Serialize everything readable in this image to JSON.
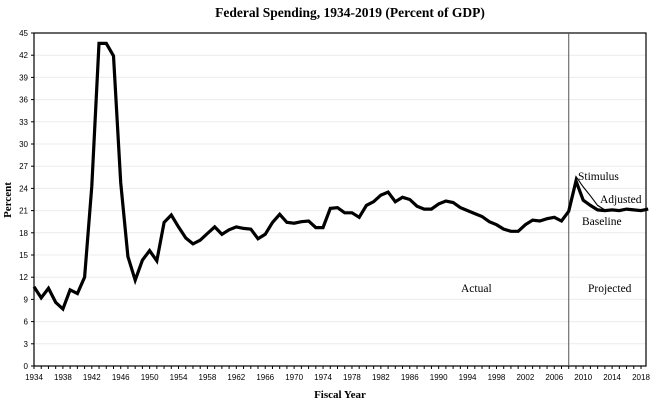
{
  "chart_data": {
    "type": "line",
    "title": "Federal Spending, 1934-2019 (Percent of GDP)",
    "xlabel": "Fiscal Year",
    "ylabel": "Percent",
    "xlim": [
      1934,
      2019
    ],
    "ylim": [
      0,
      45
    ],
    "grid": true,
    "yticks": [
      0,
      3,
      6,
      9,
      12,
      15,
      18,
      21,
      24,
      27,
      30,
      33,
      36,
      39,
      42,
      45
    ],
    "xtick_labels": [
      "1934",
      "1938",
      "1942",
      "1946",
      "1950",
      "1954",
      "1958",
      "1962",
      "1966",
      "1970",
      "1974",
      "1978",
      "1982",
      "1986",
      "1990",
      "1994",
      "1998",
      "2002",
      "2006",
      "2010",
      "2014",
      "2018"
    ],
    "divider_year": 2008,
    "region_labels": [
      "Actual",
      "Projected"
    ],
    "series": [
      {
        "name": "Baseline",
        "x": [
          1934,
          1935,
          1936,
          1937,
          1938,
          1939,
          1940,
          1941,
          1942,
          1943,
          1944,
          1945,
          1946,
          1947,
          1948,
          1949,
          1950,
          1951,
          1952,
          1953,
          1954,
          1955,
          1956,
          1957,
          1958,
          1959,
          1960,
          1961,
          1962,
          1963,
          1964,
          1965,
          1966,
          1967,
          1968,
          1969,
          1970,
          1971,
          1972,
          1973,
          1974,
          1975,
          1976,
          1977,
          1978,
          1979,
          1980,
          1981,
          1982,
          1983,
          1984,
          1985,
          1986,
          1987,
          1988,
          1989,
          1990,
          1991,
          1992,
          1993,
          1994,
          1995,
          1996,
          1997,
          1998,
          1999,
          2000,
          2001,
          2002,
          2003,
          2004,
          2005,
          2006,
          2007,
          2008,
          2009,
          2010,
          2011,
          2012,
          2013,
          2014,
          2015,
          2016,
          2017,
          2018,
          2019
        ],
        "values": [
          10.7,
          9.2,
          10.5,
          8.6,
          7.7,
          10.3,
          9.8,
          12.0,
          24.3,
          43.6,
          43.6,
          41.9,
          24.8,
          14.8,
          11.6,
          14.3,
          15.6,
          14.2,
          19.4,
          20.4,
          18.8,
          17.3,
          16.5,
          17.0,
          17.9,
          18.8,
          17.8,
          18.4,
          18.8,
          18.6,
          18.5,
          17.2,
          17.8,
          19.4,
          20.5,
          19.4,
          19.3,
          19.5,
          19.6,
          18.7,
          18.7,
          21.3,
          21.4,
          20.7,
          20.7,
          20.1,
          21.7,
          22.2,
          23.1,
          23.5,
          22.2,
          22.8,
          22.5,
          21.6,
          21.2,
          21.2,
          21.9,
          22.3,
          22.1,
          21.4,
          21.0,
          20.6,
          20.2,
          19.5,
          19.1,
          18.5,
          18.2,
          18.2,
          19.1,
          19.7,
          19.6,
          19.9,
          20.1,
          19.6,
          20.9,
          25.0,
          22.4,
          21.7,
          21.1,
          21.0,
          21.1,
          21.0,
          21.2,
          21.1,
          21.0,
          21.2
        ]
      },
      {
        "name": "Stimulus Adjusted",
        "x": [
          2008,
          2009,
          2010,
          2011,
          2012,
          2013
        ],
        "values": [
          20.9,
          25.6,
          24.2,
          23.0,
          21.7,
          21.1
        ]
      }
    ],
    "annotations": [
      "Stimulus",
      "Adjusted",
      "Baseline",
      "Actual",
      "Projected"
    ]
  }
}
